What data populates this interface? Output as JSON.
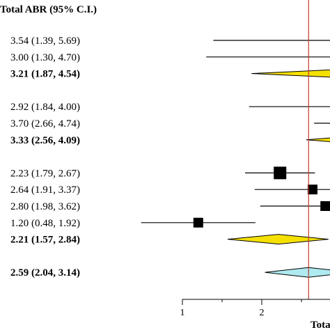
{
  "chart_data": {
    "type": "forest",
    "column_header": "Total ABR (95% C.I.)",
    "axis_label_partial": "Tota",
    "xlim": [
      0.4,
      3.2
    ],
    "x_ticks": [
      1,
      2
    ],
    "reference_line": 2.59,
    "rows": [
      {
        "label": "3.54 (1.39, 5.69)",
        "estimate": 3.54,
        "lower": 1.39,
        "upper": 5.69,
        "kind": "study",
        "weight": 0
      },
      {
        "label": "3.00 (1.30, 4.70)",
        "estimate": 3.0,
        "lower": 1.3,
        "upper": 4.7,
        "kind": "study",
        "weight": 0
      },
      {
        "label": "3.21 (1.87, 4.54)",
        "estimate": 3.21,
        "lower": 1.87,
        "upper": 4.54,
        "kind": "subtotal",
        "color": "#f5e000"
      },
      {
        "label": "",
        "kind": "gap"
      },
      {
        "label": "2.92 (1.84, 4.00)",
        "estimate": 2.92,
        "lower": 1.84,
        "upper": 4.0,
        "kind": "study",
        "weight": 0
      },
      {
        "label": "3.70 (2.66, 4.74)",
        "estimate": 3.7,
        "lower": 2.66,
        "upper": 4.74,
        "kind": "study",
        "weight": 0
      },
      {
        "label": "3.33 (2.56, 4.09)",
        "estimate": 3.33,
        "lower": 2.56,
        "upper": 4.09,
        "kind": "subtotal",
        "color": "#f5e000"
      },
      {
        "label": "",
        "kind": "gap"
      },
      {
        "label": "2.23 (1.79, 2.67)",
        "estimate": 2.23,
        "lower": 1.79,
        "upper": 2.67,
        "kind": "study",
        "weight": 3
      },
      {
        "label": "2.64 (1.91, 3.37)",
        "estimate": 2.64,
        "lower": 1.91,
        "upper": 3.37,
        "kind": "study",
        "weight": 2
      },
      {
        "label": "2.80 (1.98, 3.62)",
        "estimate": 2.8,
        "lower": 1.98,
        "upper": 3.62,
        "kind": "study",
        "weight": 2
      },
      {
        "label": "1.20 (0.48, 1.92)",
        "estimate": 1.2,
        "lower": 0.48,
        "upper": 1.92,
        "kind": "study",
        "weight": 2
      },
      {
        "label": "2.21 (1.57, 2.84)",
        "estimate": 2.21,
        "lower": 1.57,
        "upper": 2.84,
        "kind": "subtotal",
        "color": "#f5e000"
      },
      {
        "label": "",
        "kind": "gap"
      },
      {
        "label": "2.59 (2.04, 3.14)",
        "estimate": 2.59,
        "lower": 2.04,
        "upper": 3.14,
        "kind": "overall",
        "color": "#aeeaf0"
      }
    ],
    "colors": {
      "reference_line": "#c0392b",
      "subtotal_fill": "#f5e000",
      "overall_fill": "#aeeaf0",
      "marker": "#000000"
    }
  }
}
